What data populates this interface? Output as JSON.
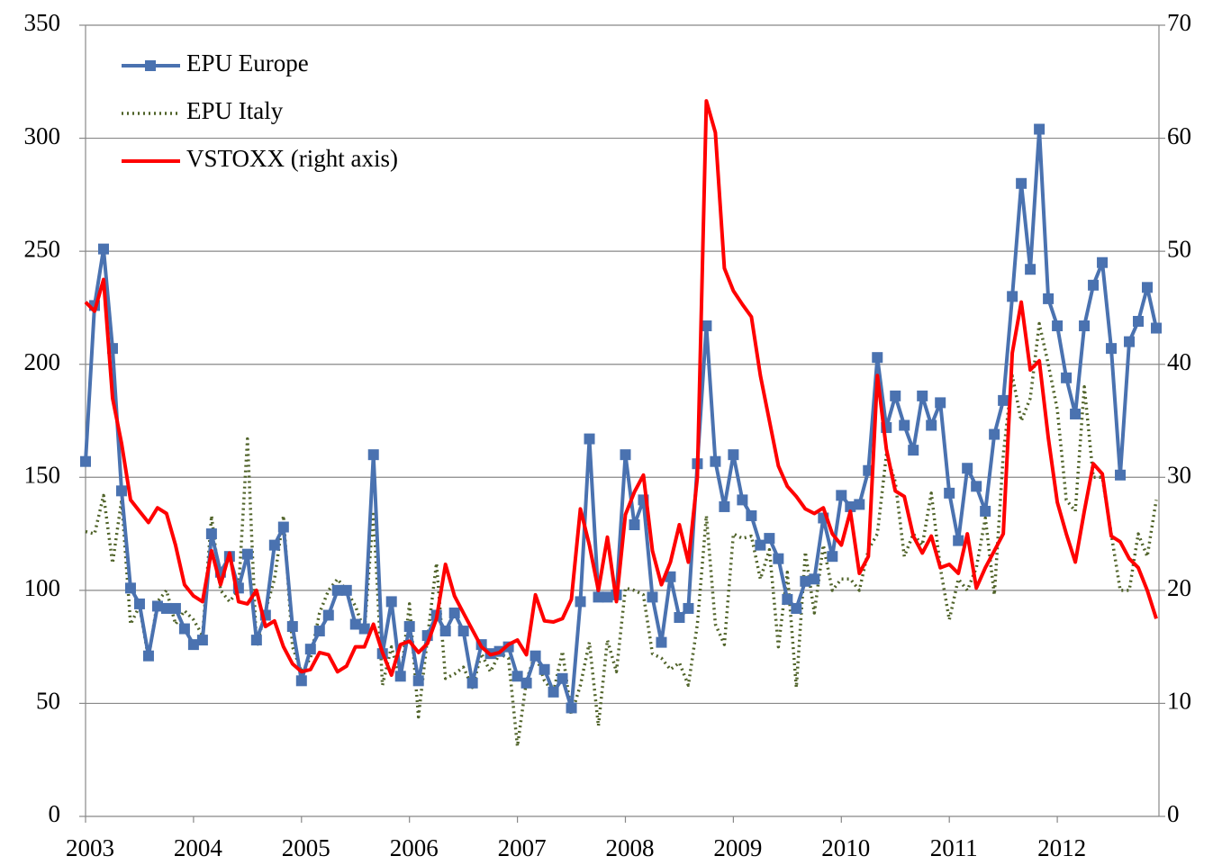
{
  "chart_data": {
    "type": "line",
    "categories": [
      "2003",
      null,
      null,
      null,
      null,
      null,
      null,
      null,
      null,
      null,
      null,
      null,
      "2004",
      null,
      null,
      null,
      null,
      null,
      null,
      null,
      null,
      null,
      null,
      null,
      "2005",
      null,
      null,
      null,
      null,
      null,
      null,
      null,
      null,
      null,
      null,
      null,
      "2006",
      null,
      null,
      null,
      null,
      null,
      null,
      null,
      null,
      null,
      null,
      null,
      "2007",
      null,
      null,
      null,
      null,
      null,
      null,
      null,
      null,
      null,
      null,
      null,
      "2008",
      null,
      null,
      null,
      null,
      null,
      null,
      null,
      null,
      null,
      null,
      null,
      "2009",
      null,
      null,
      null,
      null,
      null,
      null,
      null,
      null,
      null,
      null,
      null,
      "2010",
      null,
      null,
      null,
      null,
      null,
      null,
      null,
      null,
      null,
      null,
      null,
      "2011",
      null,
      null,
      null,
      null,
      null,
      null,
      null,
      null,
      null,
      null,
      null,
      "2012",
      null,
      null,
      null,
      null,
      null,
      null,
      null,
      null,
      null,
      null,
      null
    ],
    "series": [
      {
        "name": "EPU Europe",
        "color": "#4a72b0",
        "marker": "square",
        "dash": "solid",
        "values": [
          157,
          226,
          251,
          207,
          144,
          101,
          94,
          71,
          93,
          92,
          92,
          83,
          76,
          78,
          125,
          108,
          115,
          101,
          116,
          78,
          89,
          120,
          128,
          84,
          60,
          74,
          82,
          89,
          100,
          100,
          85,
          83,
          160,
          72,
          95,
          62,
          84,
          60,
          80,
          89,
          82,
          90,
          82,
          59,
          76,
          72,
          73,
          75,
          62,
          59,
          71,
          65,
          55,
          61,
          48,
          95,
          167,
          97,
          97,
          98,
          160,
          129,
          140,
          97,
          77,
          106,
          88,
          92,
          156,
          217,
          157,
          137,
          160,
          140,
          133,
          120,
          123,
          114,
          96,
          92,
          104,
          105,
          132,
          115,
          142,
          137,
          138,
          153,
          203,
          172,
          186,
          173,
          162,
          186,
          173,
          183,
          143,
          122,
          154,
          146,
          135,
          169,
          184,
          230,
          280,
          242,
          304,
          229,
          217,
          194,
          178,
          217,
          235,
          245,
          207,
          151,
          210,
          219,
          234,
          216
        ]
      },
      {
        "name": "EPU Italy",
        "color": "#4f6228",
        "marker": "none",
        "dash": "dotted",
        "values": [
          126,
          125,
          142,
          112,
          140,
          85,
          93,
          70,
          95,
          100,
          85,
          91,
          87,
          80,
          133,
          100,
          95,
          100,
          167,
          75,
          91,
          105,
          133,
          75,
          64,
          70,
          90,
          100,
          105,
          100,
          93,
          82,
          135,
          58,
          75,
          60,
          94,
          44,
          79,
          112,
          61,
          63,
          66,
          57,
          72,
          64,
          72,
          70,
          31,
          60,
          72,
          60,
          55,
          73,
          45,
          58,
          77,
          40,
          78,
          64,
          101,
          100,
          98,
          72,
          70,
          65,
          68,
          58,
          85,
          133,
          85,
          76,
          125,
          123,
          124,
          105,
          118,
          75,
          108,
          57,
          117,
          90,
          120,
          100,
          105,
          105,
          100,
          118,
          125,
          160,
          148,
          115,
          125,
          120,
          143,
          110,
          87,
          105,
          100,
          110,
          132,
          98,
          160,
          195,
          175,
          185,
          218,
          200,
          180,
          140,
          135,
          190,
          150,
          150,
          125,
          100,
          100,
          125,
          115,
          140
        ]
      },
      {
        "name": "VSTOXX (right axis)",
        "color": "#ff0000",
        "marker": "none",
        "dash": "solid",
        "axis": "y2",
        "values": [
          45.5,
          44.7,
          47.5,
          37,
          33,
          28,
          27,
          26,
          27.3,
          26.8,
          24,
          20.5,
          19.5,
          19,
          23.5,
          20.5,
          23.3,
          19,
          18.8,
          20,
          16.8,
          17.3,
          15,
          13.5,
          12.8,
          13,
          14.5,
          14.3,
          12.8,
          13.3,
          15,
          15,
          17,
          14.5,
          12.5,
          15.2,
          15.5,
          14.5,
          15.3,
          17.5,
          22.3,
          19.5,
          18,
          16.5,
          15,
          14.3,
          14.5,
          15.2,
          15.6,
          14.3,
          19.6,
          17.3,
          17.2,
          17.5,
          19.2,
          27.2,
          24,
          20,
          24.7,
          19,
          26.7,
          28.7,
          30.2,
          23.5,
          20.5,
          22.5,
          25.8,
          22.5,
          30,
          63.3,
          60.5,
          48.5,
          46.5,
          45.3,
          44.2,
          39,
          35,
          31,
          29.2,
          28.3,
          27.2,
          26.8,
          27.3,
          25,
          24,
          27,
          21.5,
          23,
          39,
          32.5,
          28.8,
          28.3,
          24.8,
          23.3,
          24.8,
          22,
          22.3,
          21.5,
          25,
          20.2,
          22,
          23.5,
          25,
          41,
          45.5,
          39.5,
          40.3,
          33.5,
          27.8,
          25,
          22.5,
          27,
          31.2,
          30.3,
          24.8,
          24.3,
          22.8,
          22,
          20,
          17.5
        ]
      }
    ],
    "ylim": [
      0,
      350
    ],
    "yticks": [
      0,
      50,
      100,
      150,
      200,
      250,
      300,
      350
    ],
    "y2lim": [
      0,
      70
    ],
    "y2ticks": [
      0,
      10,
      20,
      30,
      40,
      50,
      60,
      70
    ],
    "grid": true,
    "legend": "top-left"
  }
}
